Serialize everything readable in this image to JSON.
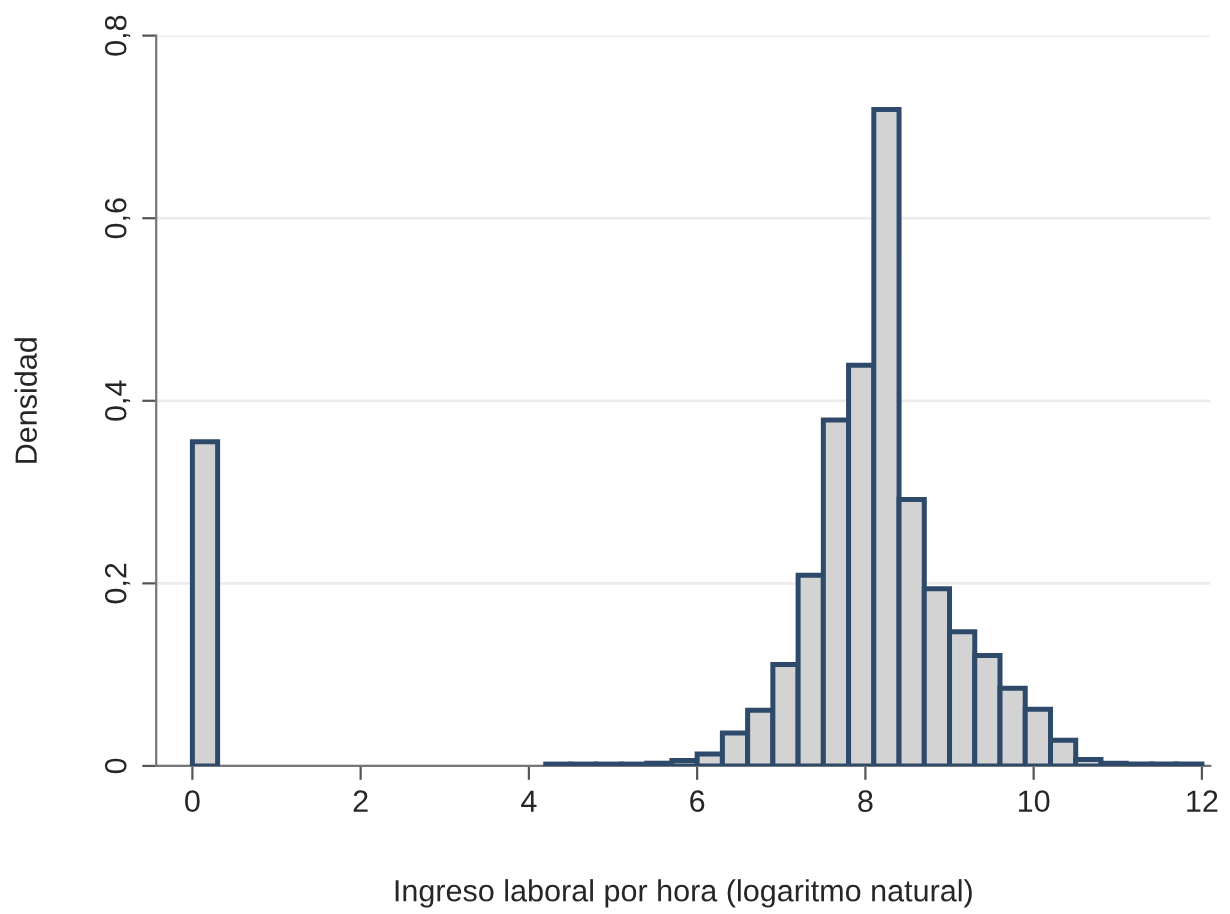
{
  "chart_data": {
    "type": "histogram",
    "xlabel": "Ingreso laboral por hora (logaritmo natural)",
    "ylabel": "Densidad",
    "color": "#d3d3d3",
    "bins": [
      0,
      0.3,
      0.6,
      0.9,
      1.2,
      1.5,
      1.8,
      2.1,
      2.4,
      2.7,
      3.0,
      3.3,
      3.6,
      3.9,
      4.2,
      4.5,
      4.8,
      5.1,
      5.4,
      5.7,
      6.0,
      6.3,
      6.6,
      6.9,
      7.2,
      7.5,
      7.8,
      8.1,
      8.4,
      8.7,
      9.0,
      9.3,
      9.6,
      9.9,
      10.2,
      10.5,
      10.8,
      11.1,
      11.4,
      11.7,
      12.0
    ],
    "values": [
      0.355,
      0,
      0,
      0,
      0,
      0,
      0,
      0,
      0,
      0,
      0,
      0,
      0,
      0,
      0.002,
      0.002,
      0.002,
      0.002,
      0.003,
      0.006,
      0.013,
      0.036,
      0.061,
      0.111,
      0.209,
      0.379,
      0.439,
      0.719,
      0.292,
      0.194,
      0.147,
      0.121,
      0.085,
      0.062,
      0.028,
      0.007,
      0.003,
      0.002,
      0.002,
      0.002
    ],
    "xlim": [
      -0.43,
      12.1
    ],
    "ylim": [
      0,
      0.8
    ],
    "xticks": [
      0,
      2,
      4,
      6,
      8,
      10,
      12
    ],
    "yticks": [
      0,
      {
        "value": 0.2,
        "label": "0,2"
      },
      {
        "value": 0.4,
        "label": "0,4"
      },
      {
        "value": 0.6,
        "label": "0,6"
      },
      {
        "value": 0.8,
        "label": "0,8"
      }
    ],
    "grid": "y",
    "legend": false
  }
}
